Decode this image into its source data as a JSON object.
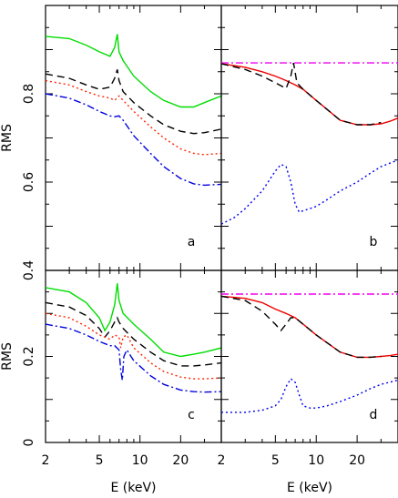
{
  "chart_data": [
    {
      "id": "a",
      "type": "line",
      "panel_label": "a",
      "ylabel": "RMS",
      "xlabel": "",
      "xscale": "log",
      "xlim": [
        2,
        40
      ],
      "ylim": [
        0.4,
        1.0
      ],
      "yticks": [
        0.4,
        0.6,
        0.8
      ],
      "ytick_labels": [
        "0.4",
        "0.6",
        "0.8"
      ],
      "series": [
        {
          "color": "#00dd00",
          "dash": "solid",
          "x": [
            2,
            3,
            4,
            5,
            6,
            6.5,
            6.8,
            7.0,
            7.5,
            9,
            12,
            15,
            20,
            25,
            30,
            40
          ],
          "y": [
            0.93,
            0.925,
            0.91,
            0.895,
            0.885,
            0.905,
            0.935,
            0.895,
            0.875,
            0.84,
            0.805,
            0.785,
            0.77,
            0.77,
            0.78,
            0.795
          ]
        },
        {
          "color": "#000000",
          "dash": "8,5",
          "x": [
            2,
            3,
            4,
            5,
            6,
            6.5,
            6.8,
            7.0,
            7.5,
            9,
            12,
            15,
            20,
            25,
            30,
            40
          ],
          "y": [
            0.845,
            0.835,
            0.82,
            0.81,
            0.815,
            0.835,
            0.855,
            0.83,
            0.805,
            0.78,
            0.75,
            0.73,
            0.715,
            0.71,
            0.712,
            0.72
          ]
        },
        {
          "color": "#ff2200",
          "dash": "2,3",
          "x": [
            2,
            3,
            4,
            5,
            6,
            6.5,
            7.0,
            7.5,
            9,
            12,
            15,
            20,
            25,
            30,
            40
          ],
          "y": [
            0.83,
            0.82,
            0.805,
            0.795,
            0.79,
            0.785,
            0.795,
            0.785,
            0.76,
            0.725,
            0.7,
            0.675,
            0.665,
            0.662,
            0.665
          ]
        },
        {
          "color": "#0000dd",
          "dash": "8,3,2,3",
          "x": [
            2,
            3,
            4,
            5,
            6,
            6.5,
            7.0,
            7.5,
            9,
            12,
            15,
            20,
            25,
            30,
            40
          ],
          "y": [
            0.8,
            0.79,
            0.775,
            0.76,
            0.75,
            0.748,
            0.75,
            0.74,
            0.705,
            0.665,
            0.635,
            0.608,
            0.596,
            0.593,
            0.595
          ]
        }
      ]
    },
    {
      "id": "b",
      "type": "line",
      "panel_label": "b",
      "xlabel": "",
      "xscale": "log",
      "xlim": [
        2,
        40
      ],
      "ylim": [
        0.4,
        1.0
      ],
      "series": [
        {
          "color": "#ee00ee",
          "dash": "8,3,2,3",
          "x": [
            2,
            40
          ],
          "y": [
            0.87,
            0.87
          ]
        },
        {
          "color": "#ee0000",
          "dash": "solid",
          "x": [
            2,
            3,
            4,
            5,
            6,
            7,
            8,
            10,
            15,
            20,
            25,
            30,
            35,
            40
          ],
          "y": [
            0.868,
            0.86,
            0.85,
            0.84,
            0.83,
            0.82,
            0.81,
            0.785,
            0.74,
            0.73,
            0.73,
            0.732,
            0.738,
            0.745
          ]
        },
        {
          "color": "#000000",
          "dash": "8,5",
          "x": [
            2,
            3,
            4,
            5,
            6,
            6.5,
            6.8,
            7.2,
            8,
            10,
            15,
            20,
            25,
            30
          ],
          "y": [
            0.868,
            0.855,
            0.84,
            0.825,
            0.812,
            0.84,
            0.87,
            0.825,
            0.81,
            0.785,
            0.74,
            0.73,
            0.73,
            0.735
          ]
        },
        {
          "color": "#0000ee",
          "dash": "2,3",
          "x": [
            2,
            2.5,
            3,
            4,
            5,
            5.5,
            6,
            6.5,
            7,
            7.5,
            8,
            9,
            10,
            12,
            15,
            20,
            25,
            30,
            40
          ],
          "y": [
            0.505,
            0.52,
            0.54,
            0.58,
            0.625,
            0.64,
            0.635,
            0.6,
            0.55,
            0.532,
            0.535,
            0.54,
            0.545,
            0.56,
            0.58,
            0.6,
            0.62,
            0.635,
            0.65
          ]
        }
      ]
    },
    {
      "id": "c",
      "type": "line",
      "panel_label": "c",
      "ylabel": "RMS",
      "xlabel": "E (keV)",
      "xscale": "log",
      "xlim": [
        2,
        40
      ],
      "ylim": [
        0.0,
        0.4
      ],
      "yticks": [
        0.0,
        0.2
      ],
      "ytick_labels": [
        "0",
        "0.2"
      ],
      "xticks": [
        2,
        5,
        10,
        20
      ],
      "xtick_labels": [
        "2",
        "5",
        "10",
        "20"
      ],
      "series": [
        {
          "color": "#00dd00",
          "dash": "solid",
          "x": [
            2,
            3,
            4,
            5,
            5.5,
            6,
            6.5,
            6.8,
            7.0,
            7.5,
            9,
            12,
            15,
            20,
            25,
            30,
            40
          ],
          "y": [
            0.36,
            0.35,
            0.325,
            0.29,
            0.26,
            0.28,
            0.32,
            0.37,
            0.33,
            0.3,
            0.275,
            0.24,
            0.21,
            0.2,
            0.205,
            0.21,
            0.22
          ]
        },
        {
          "color": "#000000",
          "dash": "8,5",
          "x": [
            2,
            3,
            4,
            5,
            5.5,
            6,
            6.5,
            6.8,
            7.0,
            7.5,
            9,
            12,
            15,
            20,
            25,
            30,
            40
          ],
          "y": [
            0.325,
            0.315,
            0.295,
            0.265,
            0.245,
            0.26,
            0.28,
            0.29,
            0.28,
            0.265,
            0.24,
            0.21,
            0.19,
            0.178,
            0.178,
            0.18,
            0.185
          ]
        },
        {
          "color": "#ff2200",
          "dash": "2,3",
          "x": [
            2,
            3,
            4,
            5,
            5.5,
            6,
            6.5,
            7.0,
            7.2,
            7.5,
            8,
            9,
            12,
            15,
            20,
            25,
            30,
            40
          ],
          "y": [
            0.3,
            0.29,
            0.27,
            0.25,
            0.245,
            0.24,
            0.25,
            0.245,
            0.22,
            0.245,
            0.25,
            0.22,
            0.185,
            0.165,
            0.152,
            0.148,
            0.148,
            0.15
          ]
        },
        {
          "color": "#0000dd",
          "dash": "8,3,2,3",
          "x": [
            2,
            3,
            4,
            5,
            6,
            6.5,
            7.0,
            7.2,
            7.4,
            7.6,
            8,
            9,
            12,
            15,
            20,
            25,
            30,
            40
          ],
          "y": [
            0.275,
            0.265,
            0.25,
            0.235,
            0.225,
            0.225,
            0.215,
            0.17,
            0.145,
            0.2,
            0.215,
            0.19,
            0.155,
            0.135,
            0.122,
            0.118,
            0.117,
            0.118
          ]
        }
      ]
    },
    {
      "id": "d",
      "type": "line",
      "panel_label": "d",
      "xlabel": "E (keV)",
      "xscale": "log",
      "xlim": [
        2,
        40
      ],
      "ylim": [
        0.0,
        0.4
      ],
      "xticks": [
        2,
        5,
        10,
        20
      ],
      "xtick_labels": [
        "2",
        "5",
        "10",
        "20"
      ],
      "series": [
        {
          "color": "#ee00ee",
          "dash": "8,3,2,3",
          "x": [
            2,
            40
          ],
          "y": [
            0.345,
            0.345
          ]
        },
        {
          "color": "#ee0000",
          "dash": "solid",
          "x": [
            2,
            3,
            4,
            5,
            6,
            7,
            8,
            10,
            15,
            20,
            25,
            30,
            35,
            40
          ],
          "y": [
            0.34,
            0.335,
            0.325,
            0.31,
            0.3,
            0.29,
            0.275,
            0.25,
            0.21,
            0.198,
            0.198,
            0.2,
            0.202,
            0.205
          ]
        },
        {
          "color": "#000000",
          "dash": "8,5",
          "x": [
            2,
            3,
            4,
            5,
            5.5,
            6,
            6.5,
            7,
            8,
            10,
            15,
            20,
            25,
            30
          ],
          "y": [
            0.34,
            0.33,
            0.305,
            0.275,
            0.26,
            0.275,
            0.29,
            0.29,
            0.275,
            0.25,
            0.21,
            0.198,
            0.198,
            0.2
          ]
        },
        {
          "color": "#0000ee",
          "dash": "2,3",
          "x": [
            2,
            3,
            4,
            5,
            5.5,
            6,
            6.5,
            7,
            7.5,
            8,
            9,
            10,
            12,
            15,
            20,
            25,
            30,
            40
          ],
          "y": [
            0.07,
            0.07,
            0.075,
            0.085,
            0.1,
            0.13,
            0.148,
            0.14,
            0.11,
            0.085,
            0.08,
            0.08,
            0.085,
            0.095,
            0.11,
            0.125,
            0.135,
            0.145
          ]
        }
      ]
    }
  ]
}
